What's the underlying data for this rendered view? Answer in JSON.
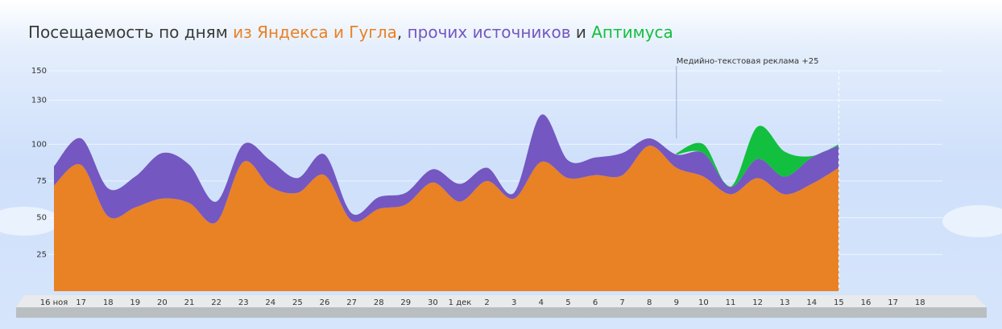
{
  "chart_data": {
    "type": "stacked_area",
    "title_parts": [
      "Посещаемость по дням",
      ",",
      "и"
    ],
    "categories": [
      "16 ноя",
      "17",
      "18",
      "19",
      "20",
      "21",
      "22",
      "23",
      "24",
      "25",
      "26",
      "27",
      "28",
      "29",
      "30",
      "1 дек",
      "2",
      "3",
      "4",
      "5",
      "6",
      "7",
      "8",
      "9",
      "10",
      "11",
      "12",
      "13",
      "14",
      "15",
      "16",
      "17",
      "18"
    ],
    "series": [
      {
        "name": "из Яндекса и Гугла",
        "color": "#e98125",
        "values": [
          72,
          86,
          51,
          57,
          63,
          60,
          47,
          88,
          71,
          67,
          79,
          48,
          56,
          59,
          74,
          61,
          75,
          63,
          88,
          77,
          79,
          79,
          99,
          84,
          78,
          66,
          77,
          66,
          73,
          84,
          null,
          null,
          null
        ]
      },
      {
        "name": "прочих источников",
        "color": "#7457c1",
        "values": [
          13,
          18,
          19,
          21,
          31,
          26,
          14,
          12,
          18,
          10,
          14,
          5,
          8,
          8,
          9,
          12,
          9,
          4,
          32,
          12,
          12,
          15,
          5,
          9,
          16,
          5,
          13,
          12,
          18,
          15,
          null,
          null,
          null
        ]
      },
      {
        "name": "Аптимуса",
        "color": "#13bf3f",
        "values": [
          null,
          null,
          null,
          null,
          null,
          null,
          null,
          null,
          null,
          null,
          null,
          null,
          null,
          null,
          null,
          null,
          null,
          null,
          null,
          null,
          null,
          null,
          null,
          1,
          6,
          0,
          22,
          17,
          1,
          1,
          null,
          null,
          null
        ]
      }
    ],
    "ylim": [
      0,
      150
    ],
    "yticks": [
      25,
      50,
      75,
      100,
      130,
      150
    ],
    "grid": true,
    "annotation": {
      "text": "Медийно-текстовая реклама +25",
      "category_index": 23
    }
  }
}
